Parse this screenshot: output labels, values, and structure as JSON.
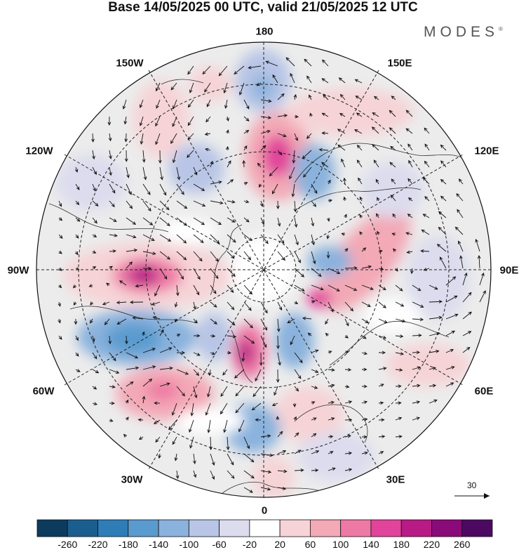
{
  "title": "Base 14/05/2025 00 UTC, valid 21/05/2025 12 UTC",
  "brand": "MODES",
  "brand_mark": "®",
  "longitude_labels": {
    "north": "180",
    "south": "0",
    "west": "90W",
    "east": "90E",
    "l150w": "150W",
    "l150e": "150E",
    "l120w": "120W",
    "l120e": "120E",
    "l60w": "60W",
    "l60e": "60E",
    "l30w": "30W",
    "l30e": "30E"
  },
  "reference_vector": {
    "value": "30"
  },
  "colorbar": {
    "colors": [
      "#0d3b5e",
      "#1a5e8f",
      "#2f7db7",
      "#5a9bcf",
      "#8ab2dd",
      "#b8c5e6",
      "#dcdcee",
      "#ffffff",
      "#f6d3d6",
      "#f3a9b6",
      "#ee79a4",
      "#e1449a",
      "#b81a86",
      "#8b0a7a",
      "#4d0962"
    ],
    "labels": [
      "-260",
      "-220",
      "-180",
      "-140",
      "-100",
      "-60",
      "-20",
      "20",
      "60",
      "100",
      "140",
      "180",
      "220",
      "260"
    ]
  }
}
